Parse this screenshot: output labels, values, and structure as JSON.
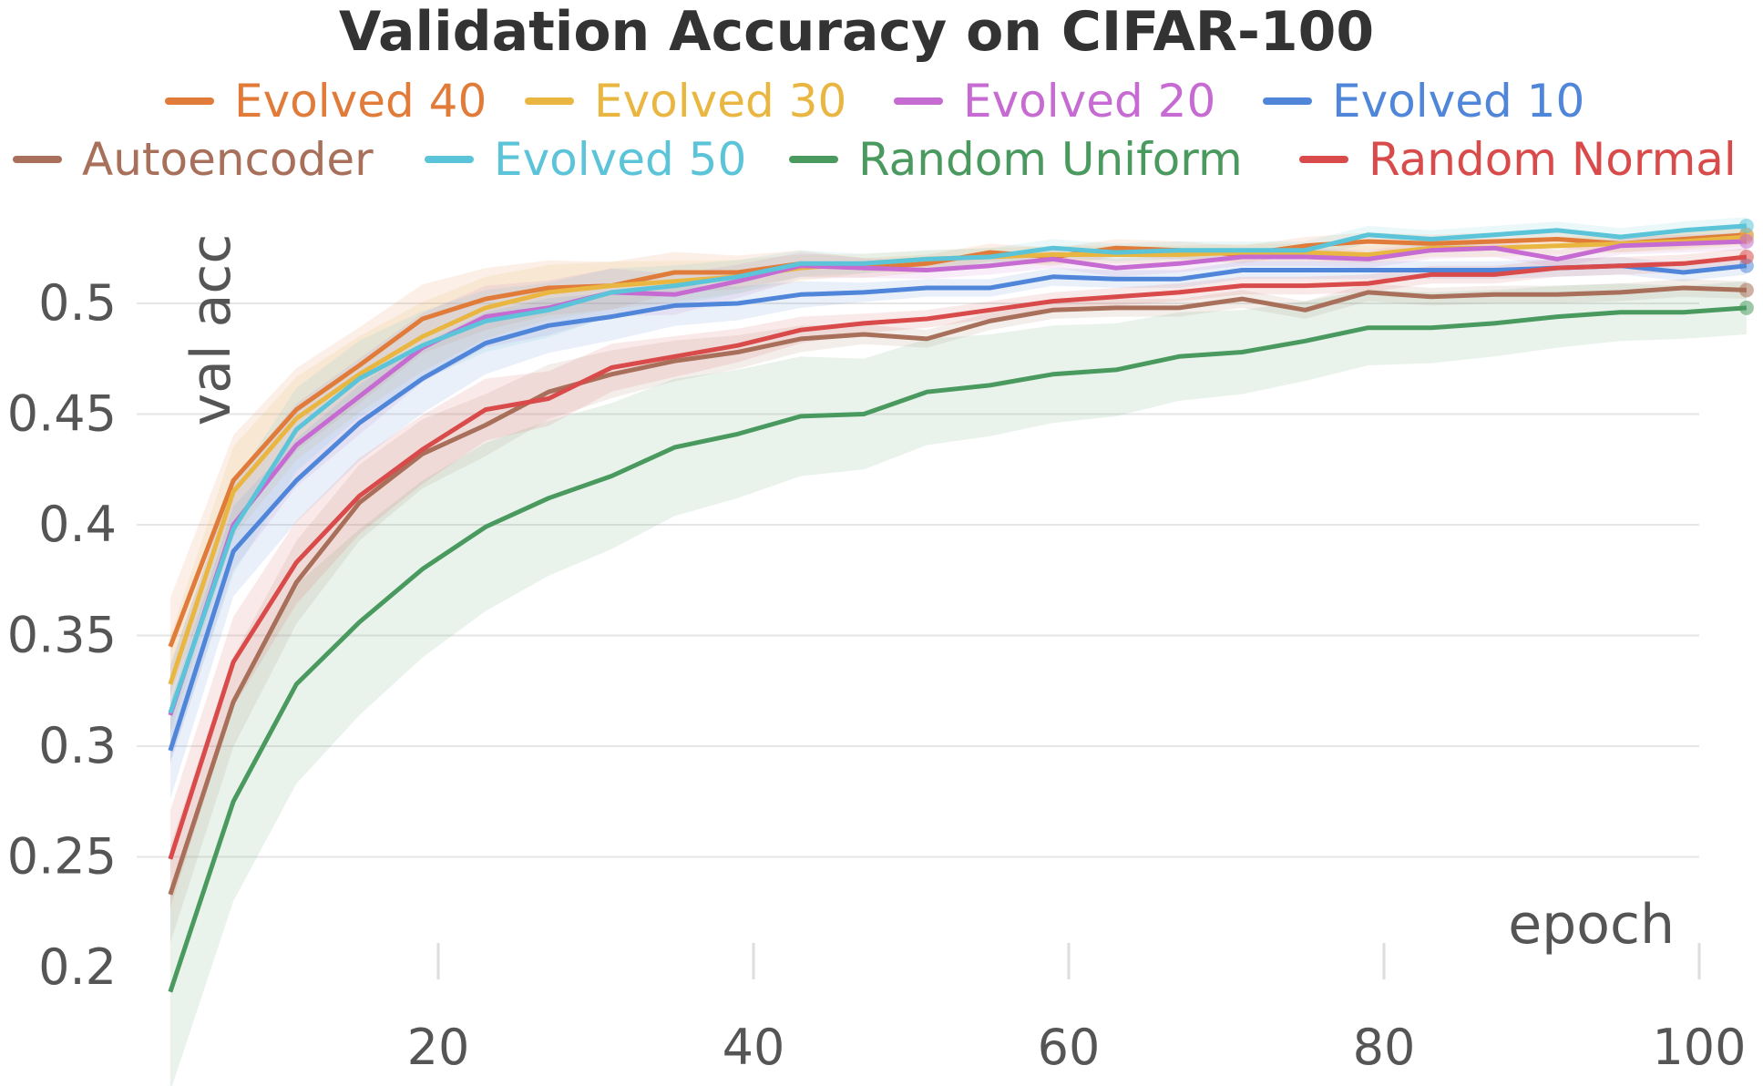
{
  "chart_data": {
    "type": "line",
    "title": "Validation Accuracy on CIFAR-100",
    "xlabel": "epoch",
    "ylabel": "val acc",
    "xlim": [
      0,
      100
    ],
    "ylim": [
      0.18,
      0.54
    ],
    "x_ticks": [
      20,
      40,
      60,
      80,
      100
    ],
    "y_ticks": [
      0.2,
      0.25,
      0.3,
      0.35,
      0.4,
      0.45,
      0.5
    ],
    "x_tick_labels": [
      "20",
      "40",
      "60",
      "80",
      "100"
    ],
    "y_tick_labels": [
      "0.2",
      "0.25",
      "0.3",
      "0.35",
      "0.4",
      "0.45",
      "0.5"
    ],
    "grid": true,
    "legend_position": "top",
    "x": [
      3,
      7,
      11,
      15,
      19,
      23,
      27,
      31,
      35,
      39,
      43,
      47,
      51,
      55,
      59,
      63,
      67,
      71,
      75,
      79,
      83,
      87,
      91,
      95,
      99,
      103
    ],
    "series": [
      {
        "name": "Evolved 40",
        "color": "#e07b39",
        "values": [
          0.345,
          0.42,
          0.452,
          0.472,
          0.493,
          0.502,
          0.507,
          0.508,
          0.514,
          0.514,
          0.518,
          0.516,
          0.518,
          0.523,
          0.521,
          0.525,
          0.524,
          0.522,
          0.526,
          0.528,
          0.527,
          0.528,
          0.529,
          0.527,
          0.529,
          0.531
        ]
      },
      {
        "name": "Evolved 30",
        "color": "#e9b741",
        "values": [
          0.328,
          0.415,
          0.448,
          0.468,
          0.485,
          0.498,
          0.505,
          0.508,
          0.51,
          0.512,
          0.516,
          0.518,
          0.52,
          0.521,
          0.522,
          0.522,
          0.522,
          0.523,
          0.523,
          0.522,
          0.525,
          0.525,
          0.526,
          0.527,
          0.528,
          0.53
        ]
      },
      {
        "name": "Evolved 20",
        "color": "#c56bd1",
        "values": [
          0.314,
          0.4,
          0.436,
          0.458,
          0.48,
          0.494,
          0.498,
          0.505,
          0.504,
          0.51,
          0.517,
          0.516,
          0.515,
          0.517,
          0.52,
          0.516,
          0.518,
          0.521,
          0.521,
          0.52,
          0.524,
          0.525,
          0.52,
          0.526,
          0.527,
          0.528
        ]
      },
      {
        "name": "Evolved 10",
        "color": "#4f86d9",
        "values": [
          0.298,
          0.388,
          0.42,
          0.446,
          0.466,
          0.482,
          0.49,
          0.494,
          0.499,
          0.5,
          0.504,
          0.505,
          0.507,
          0.507,
          0.512,
          0.511,
          0.511,
          0.515,
          0.515,
          0.515,
          0.515,
          0.515,
          0.516,
          0.517,
          0.514,
          0.517
        ]
      },
      {
        "name": "Autoencoder",
        "color": "#a8705a",
        "values": [
          0.233,
          0.32,
          0.374,
          0.41,
          0.432,
          0.445,
          0.46,
          0.468,
          0.474,
          0.478,
          0.484,
          0.486,
          0.484,
          0.492,
          0.497,
          0.498,
          0.498,
          0.502,
          0.497,
          0.505,
          0.503,
          0.504,
          0.504,
          0.505,
          0.507,
          0.506
        ]
      },
      {
        "name": "Evolved 50",
        "color": "#5bc4d8",
        "values": [
          0.315,
          0.398,
          0.443,
          0.466,
          0.481,
          0.492,
          0.497,
          0.505,
          0.508,
          0.512,
          0.518,
          0.518,
          0.52,
          0.521,
          0.525,
          0.523,
          0.524,
          0.524,
          0.524,
          0.531,
          0.529,
          0.531,
          0.533,
          0.53,
          0.533,
          0.535
        ]
      },
      {
        "name": "Random Uniform",
        "color": "#4a9a5f",
        "values": [
          0.189,
          0.275,
          0.328,
          0.356,
          0.38,
          0.399,
          0.412,
          0.422,
          0.435,
          0.441,
          0.449,
          0.45,
          0.46,
          0.463,
          0.468,
          0.47,
          0.476,
          0.478,
          0.483,
          0.489,
          0.489,
          0.491,
          0.494,
          0.496,
          0.496,
          0.498
        ]
      },
      {
        "name": "Random Normal",
        "color": "#d94a4a",
        "values": [
          0.249,
          0.338,
          0.383,
          0.413,
          0.434,
          0.452,
          0.457,
          0.471,
          0.476,
          0.481,
          0.488,
          0.491,
          0.493,
          0.497,
          0.501,
          0.503,
          0.505,
          0.508,
          0.508,
          0.509,
          0.513,
          0.513,
          0.516,
          0.517,
          0.518,
          0.521
        ]
      }
    ]
  }
}
